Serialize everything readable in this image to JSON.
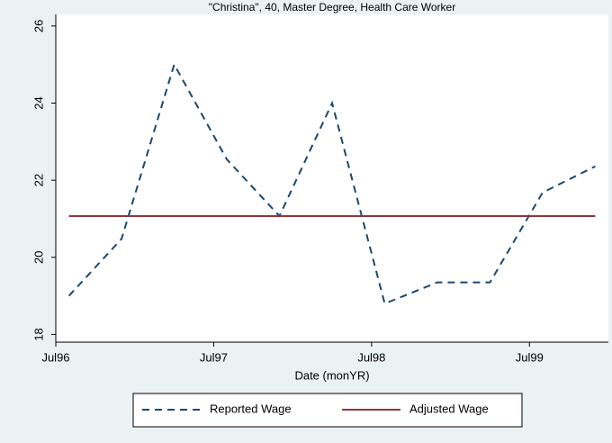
{
  "chart_data": {
    "type": "line",
    "title": "\"Christina\", 40, Master Degree, Health Care Worker",
    "x_label": "Date (monYR)",
    "x": [
      "1996-08",
      "1996-12",
      "1997-04",
      "1997-08",
      "1997-12",
      "1998-04",
      "1998-08",
      "1998-12",
      "1999-04",
      "1999-08",
      "1999-12"
    ],
    "series": [
      {
        "name": "Reported Wage",
        "color": "#1a476f",
        "dash": true,
        "values": [
          19.0,
          20.48,
          25.0,
          22.54,
          21.07,
          24.0,
          18.8,
          19.35,
          19.35,
          21.68,
          22.36
        ]
      },
      {
        "name": "Adjusted Wage",
        "color": "#90353b",
        "dash": false,
        "values": [
          21.07,
          21.07,
          21.07,
          21.07,
          21.07,
          21.07,
          21.07,
          21.07,
          21.07,
          21.07,
          21.07
        ]
      }
    ],
    "xlim": [
      "1996-07",
      "2000-01"
    ],
    "xticks": [
      {
        "value": "1996-07",
        "label": "Jul96"
      },
      {
        "value": "1997-07",
        "label": "Jul97"
      },
      {
        "value": "1998-07",
        "label": "Jul98"
      },
      {
        "value": "1999-07",
        "label": "Jul99"
      }
    ],
    "ylim": [
      17.8,
      26.3
    ],
    "yticks": [
      18,
      20,
      22,
      24,
      26
    ],
    "grid": false,
    "legend": "bottom"
  }
}
